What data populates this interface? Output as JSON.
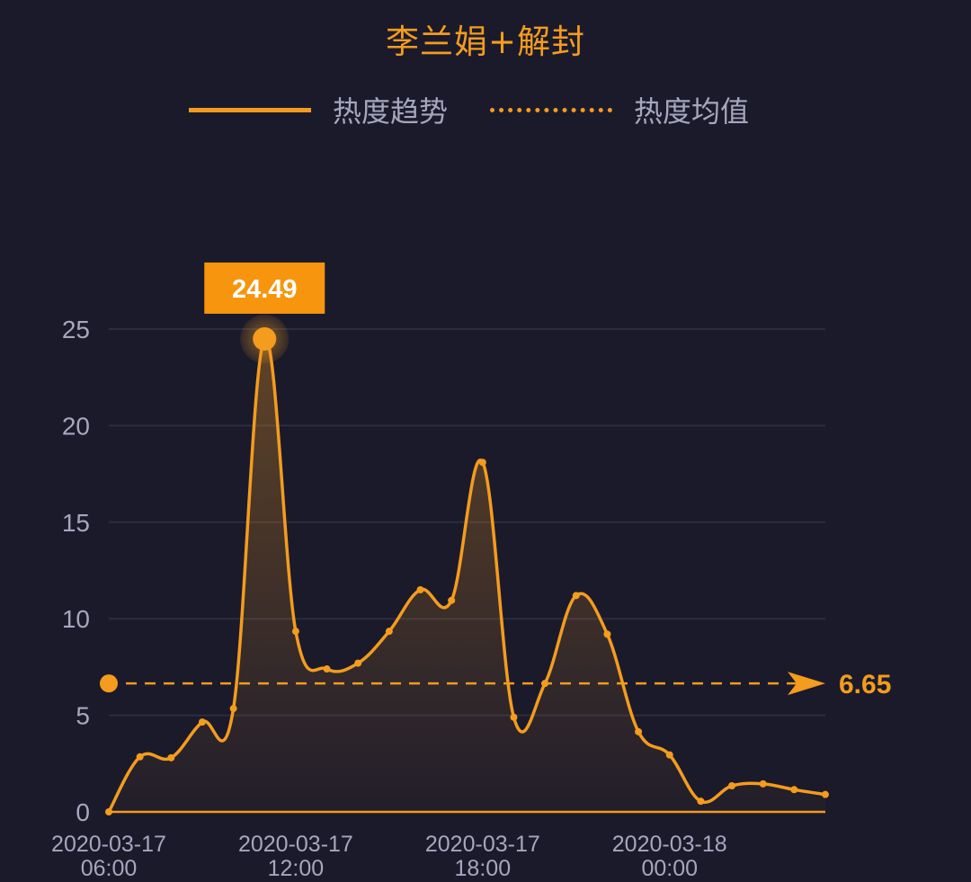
{
  "title": "李兰娟+解封",
  "legend": {
    "trend": "热度趋势",
    "average": "热度均值"
  },
  "colors": {
    "background": "#1b1a2b",
    "accent": "#f39c1e",
    "text_muted": "#a6a6bd",
    "grid": "#2d2c40"
  },
  "chart_data": {
    "type": "area",
    "title": "李兰娟+解封",
    "x_ticks": [
      {
        "x": 0,
        "date": "2020-03-17",
        "time": "06:00"
      },
      {
        "x": 6,
        "date": "2020-03-17",
        "time": "12:00"
      },
      {
        "x": 12,
        "date": "2020-03-17",
        "time": "18:00"
      },
      {
        "x": 18,
        "date": "2020-03-18",
        "time": "00:00"
      }
    ],
    "y_ticks": [
      0,
      5,
      10,
      15,
      20,
      25
    ],
    "ylim": [
      0,
      25
    ],
    "xlim": [
      0,
      23
    ],
    "series": [
      {
        "name": "热度趋势",
        "x": [
          0,
          1,
          2,
          3,
          4,
          5,
          6,
          7,
          8,
          9,
          10,
          11,
          12,
          13,
          14,
          15,
          16,
          17,
          18,
          19,
          20,
          21,
          22
        ],
        "values": [
          0,
          2.85,
          2.8,
          4.65,
          5.35,
          24.49,
          9.35,
          7.4,
          7.7,
          9.35,
          11.5,
          10.95,
          18.1,
          4.9,
          6.65,
          11.2,
          9.2,
          4.15,
          2.95,
          0.55,
          1.35,
          1.45,
          1.15
        ]
      }
    ],
    "extra_point": {
      "x": 23,
      "y": 0.9
    },
    "average": 6.65,
    "average_label": "6.65",
    "peak_label": "24.49",
    "grid": true
  }
}
